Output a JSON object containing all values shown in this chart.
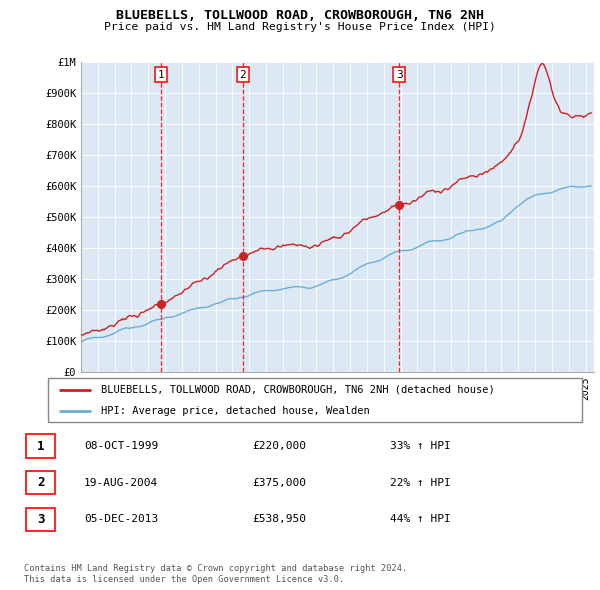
{
  "title1": "BLUEBELLS, TOLLWOOD ROAD, CROWBOROUGH, TN6 2NH",
  "title2": "Price paid vs. HM Land Registry's House Price Index (HPI)",
  "ylim": [
    0,
    1000000
  ],
  "yticks": [
    0,
    100000,
    200000,
    300000,
    400000,
    500000,
    600000,
    700000,
    800000,
    900000,
    1000000
  ],
  "ytick_labels": [
    "£0",
    "£100K",
    "£200K",
    "£300K",
    "£400K",
    "£500K",
    "£600K",
    "£700K",
    "£800K",
    "£900K",
    "£1M"
  ],
  "xlim_start": 1995.0,
  "xlim_end": 2025.5,
  "hpi_color": "#6baed6",
  "property_color": "#cc2222",
  "sale1_year": 1999.77,
  "sale1_price": 220000,
  "sale2_year": 2004.63,
  "sale2_price": 375000,
  "sale3_year": 2013.92,
  "sale3_price": 538950,
  "legend_property": "BLUEBELLS, TOLLWOOD ROAD, CROWBOROUGH, TN6 2NH (detached house)",
  "legend_hpi": "HPI: Average price, detached house, Wealden",
  "table_rows": [
    {
      "num": "1",
      "date": "08-OCT-1999",
      "price": "£220,000",
      "change": "33% ↑ HPI"
    },
    {
      "num": "2",
      "date": "19-AUG-2004",
      "price": "£375,000",
      "change": "22% ↑ HPI"
    },
    {
      "num": "3",
      "date": "05-DEC-2013",
      "price": "£538,950",
      "change": "44% ↑ HPI"
    }
  ],
  "footnote1": "Contains HM Land Registry data © Crown copyright and database right 2024.",
  "footnote2": "This data is licensed under the Open Government Licence v3.0.",
  "chart_bg": "#dce9f5",
  "fig_bg": "#ffffff"
}
